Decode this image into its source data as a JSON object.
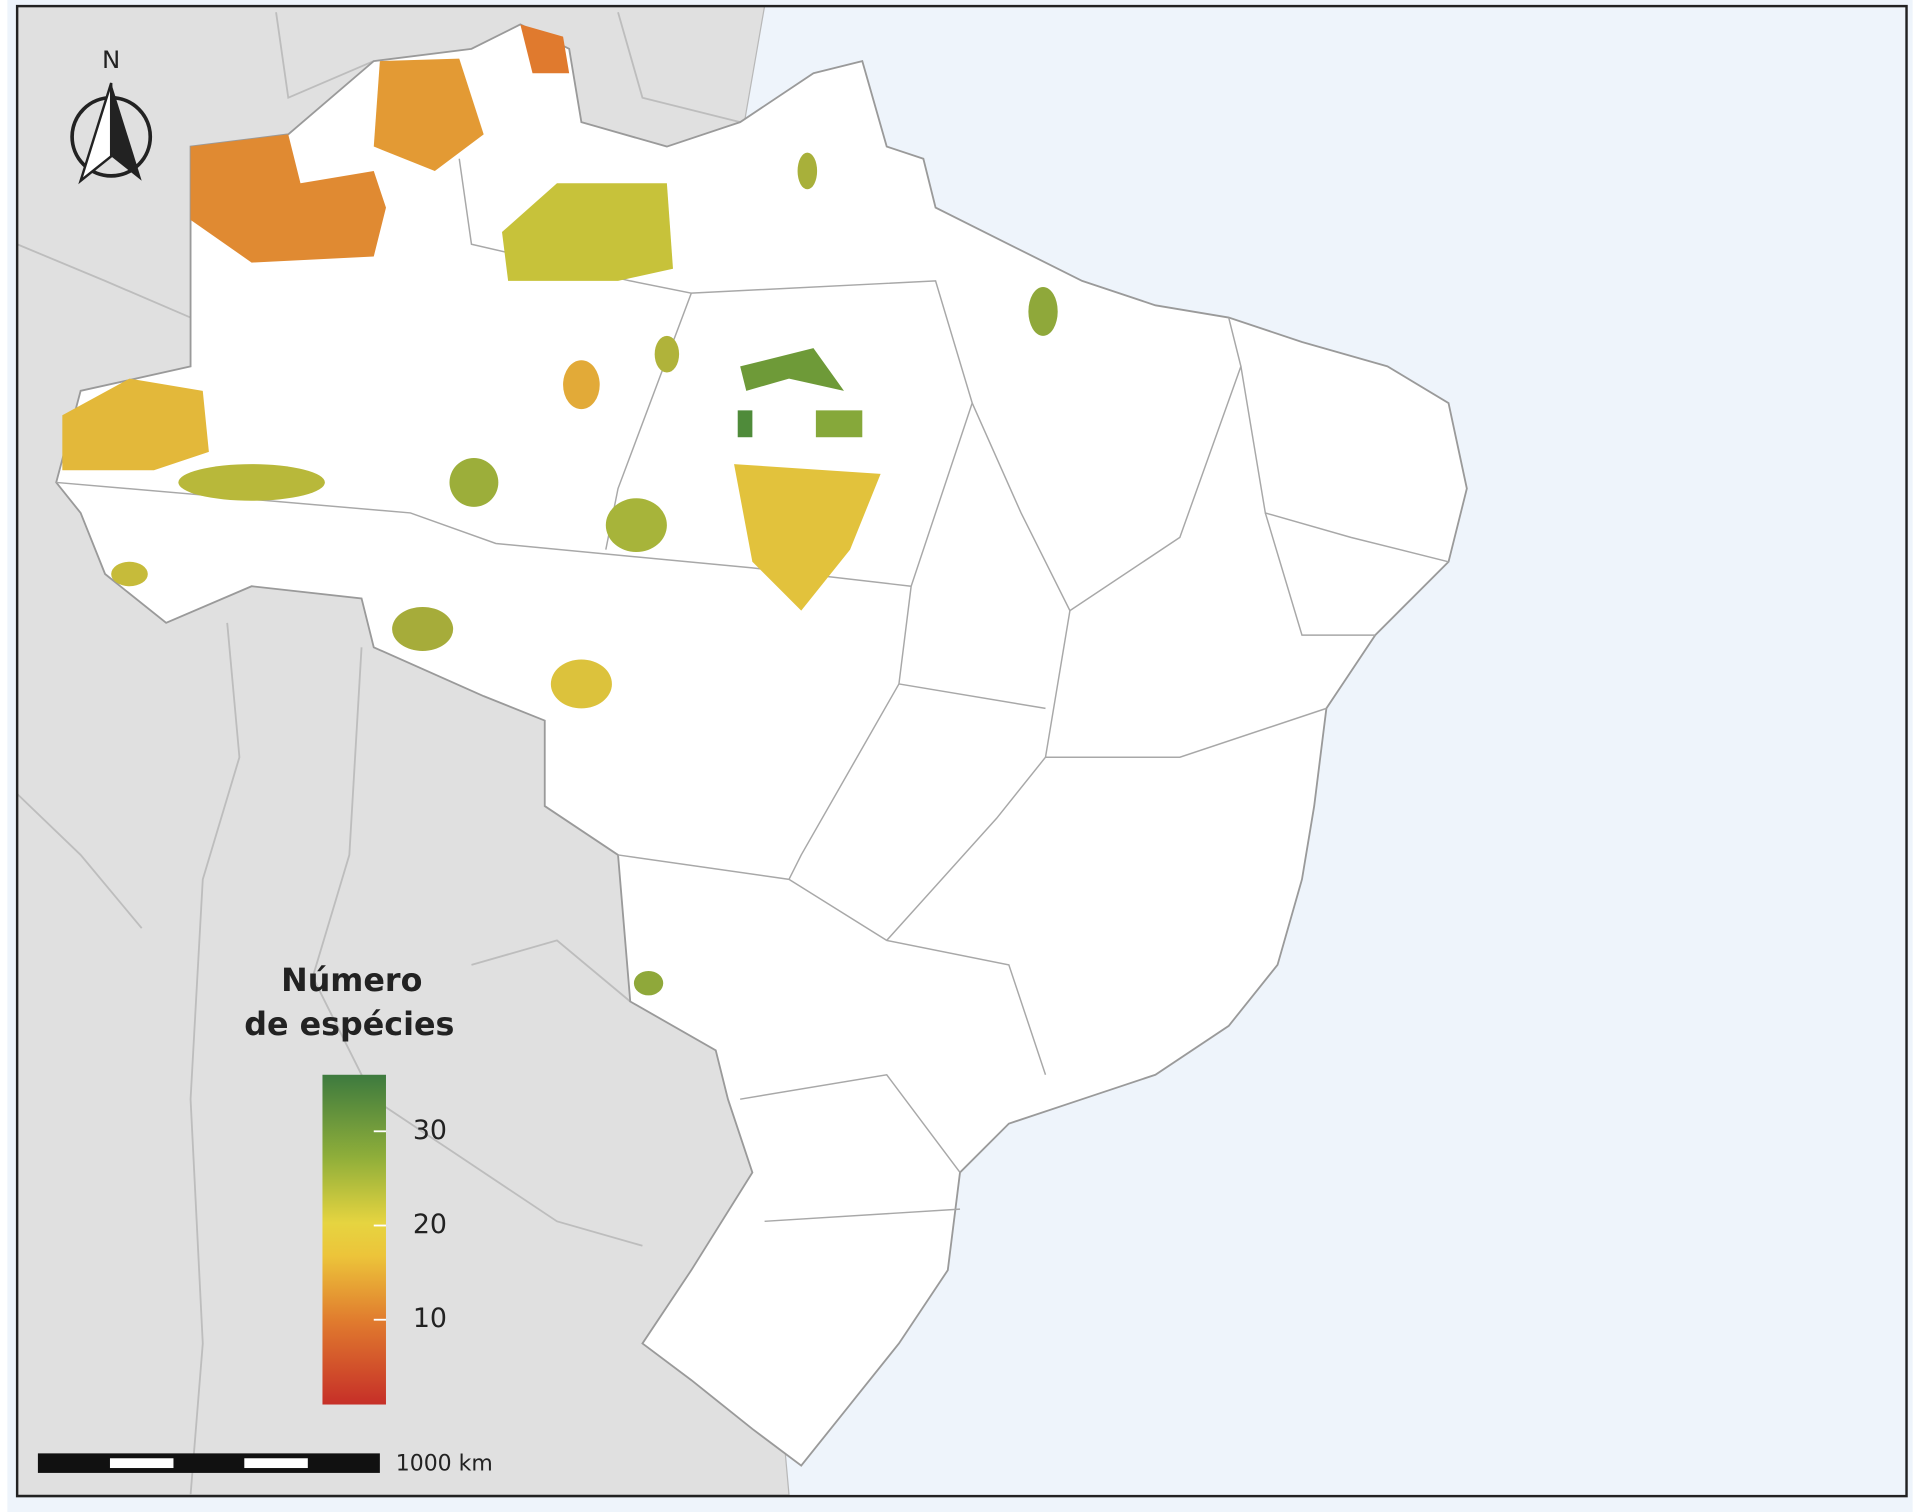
{
  "north_label": "N",
  "legend": {
    "title_lines": [
      "Número",
      "de espécies"
    ],
    "lim": [
      1,
      36
    ],
    "ticks": [
      10,
      20,
      30
    ]
  },
  "scale_bar": {
    "label": "1000 km"
  }
}
